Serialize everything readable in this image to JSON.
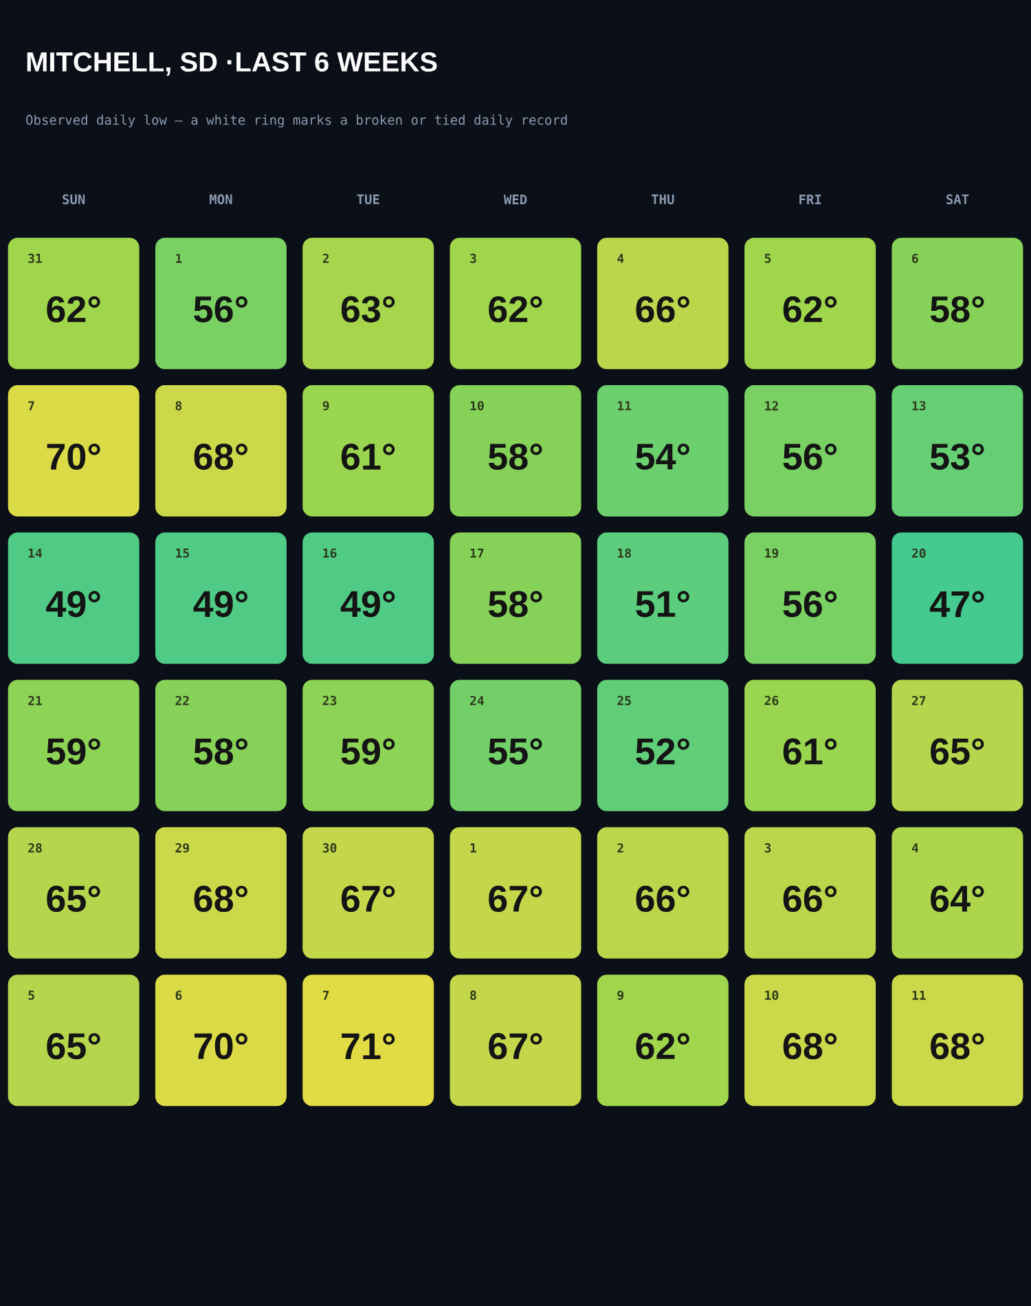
{
  "chart_data": {
    "type": "heatmap",
    "title": "MITCHELL, SD ·LAST 6 WEEKS",
    "subtitle": "Observed daily low — a white ring marks a broken or tied daily record",
    "categories": [
      "SUN",
      "MON",
      "TUE",
      "WED",
      "THU",
      "FRI",
      "SAT"
    ],
    "y_categories": [
      null,
      null,
      null,
      null,
      null,
      null
    ],
    "cells": [
      [
        62,
        56,
        63,
        62,
        66,
        62,
        58
      ],
      [
        70,
        68,
        61,
        58,
        54,
        56,
        53
      ],
      [
        49,
        49,
        49,
        58,
        51,
        56,
        47
      ],
      [
        59,
        58,
        59,
        55,
        52,
        61,
        65
      ],
      [
        65,
        68,
        67,
        67,
        66,
        66,
        64
      ],
      [
        65,
        70,
        71,
        67,
        62,
        68,
        68
      ]
    ],
    "cell_labels": [
      [
        "62°",
        "56°",
        "63°",
        "62°",
        "66°",
        "62°",
        "58°"
      ],
      [
        "70°",
        "68°",
        "61°",
        "58°",
        "54°",
        "56°",
        "53°"
      ],
      [
        "49°",
        "49°",
        "49°",
        "58°",
        "51°",
        "56°",
        "47°"
      ],
      [
        "59°",
        "58°",
        "59°",
        "55°",
        "52°",
        "61°",
        "65°"
      ],
      [
        "65°",
        "68°",
        "67°",
        "67°",
        "66°",
        "66°",
        "64°"
      ],
      [
        "65°",
        "70°",
        "71°",
        "67°",
        "62°",
        "68°",
        "68°"
      ]
    ],
    "annotations": [
      "31",
      "1",
      "2",
      "3",
      "4",
      "5",
      "6",
      "7",
      "8",
      "9",
      "10",
      "11",
      "12",
      "13",
      "14",
      "15",
      "16",
      "17",
      "18",
      "19",
      "20",
      "21",
      "22",
      "23",
      "24",
      "25",
      "26",
      "27",
      "28",
      "29",
      "30",
      "1",
      "2",
      "3",
      "4",
      "5",
      "6",
      "7",
      "8",
      "9",
      "10",
      "11"
    ]
  }
}
